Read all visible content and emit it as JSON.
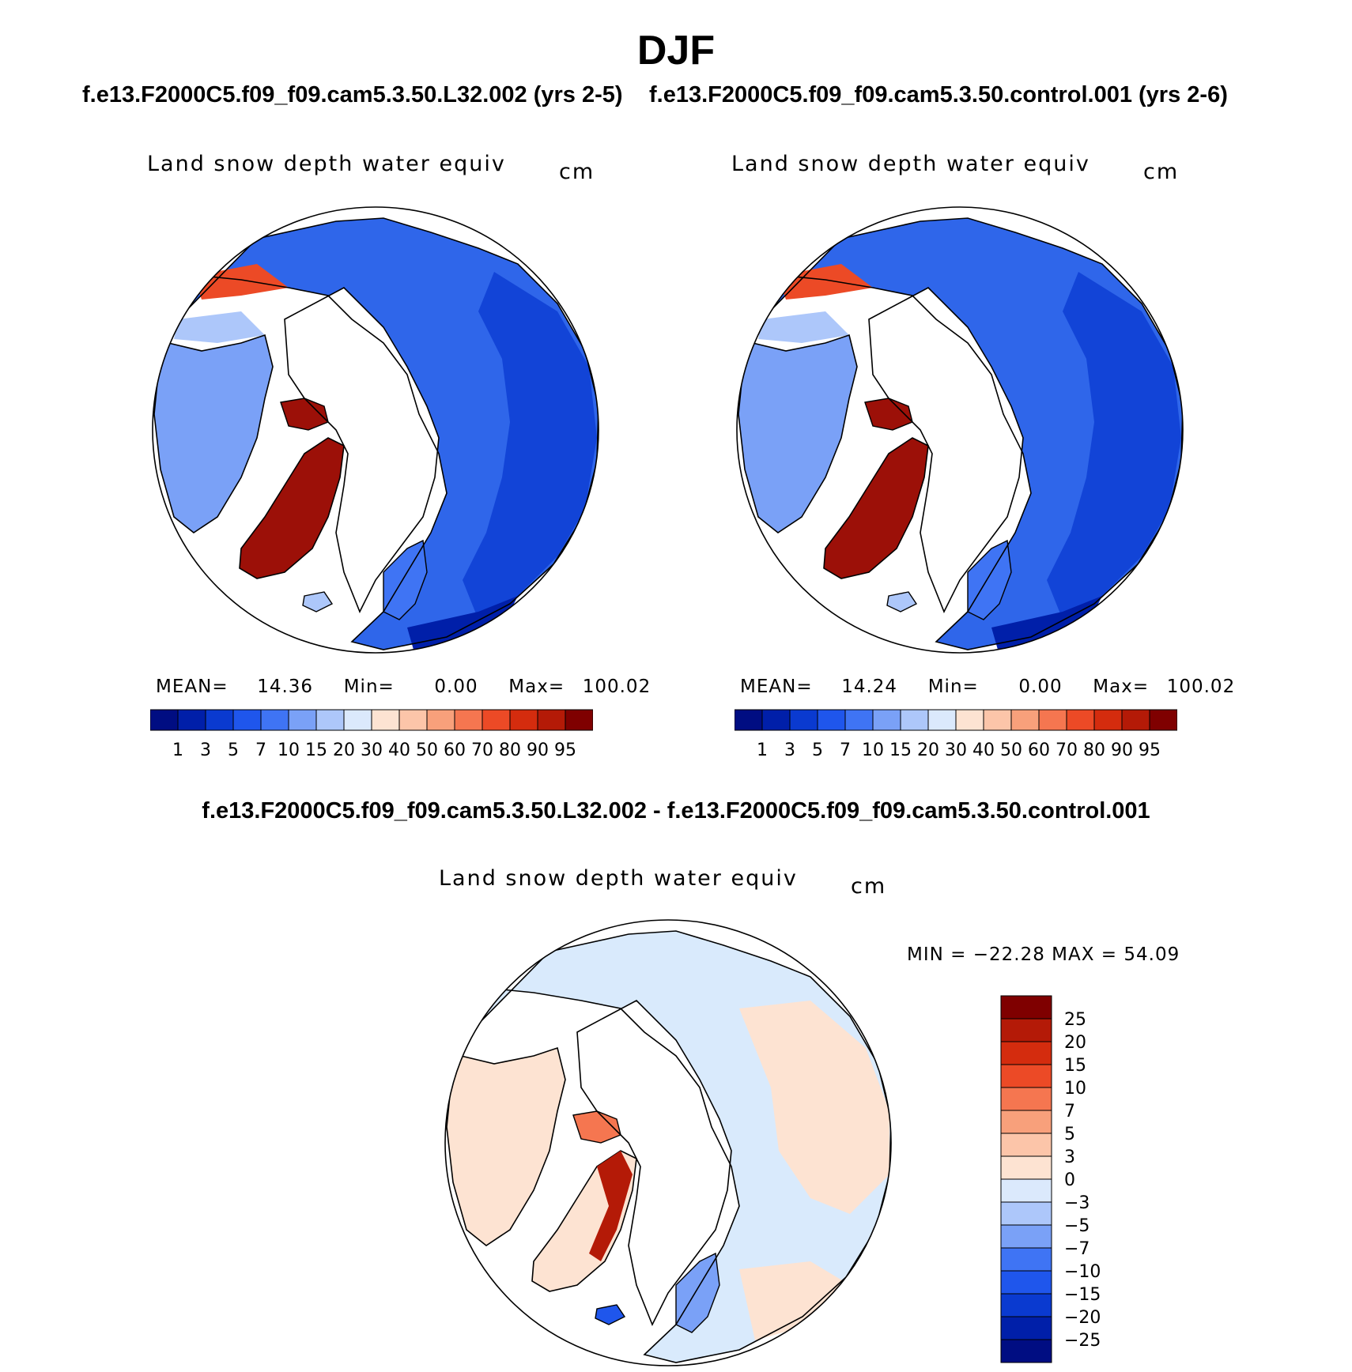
{
  "season": "DJF",
  "cases": {
    "test_title": "f.e13.F2000C5.f09_f09.cam5.3.50.L32.002 (yrs 2-5)",
    "control_title": "f.e13.F2000C5.f09_f09.cam5.3.50.control.001 (yrs 2-6)",
    "diff_title": "f.e13.F2000C5.f09_f09.cam5.3.50.L32.002 - f.e13.F2000C5.f09_f09.cam5.3.50.control.001"
  },
  "variable": {
    "long_name": "Land snow depth water equiv",
    "units": "cm"
  },
  "stats": {
    "test": {
      "mean_label": "MEAN=",
      "mean": "14.36",
      "min_label": "Min=",
      "min": "0.00",
      "max_label": "Max=",
      "max": "100.02"
    },
    "control": {
      "mean_label": "MEAN=",
      "mean": "14.24",
      "min_label": "Min=",
      "min": "0.00",
      "max_label": "Max=",
      "max": "100.02"
    },
    "diff": {
      "text": "MIN = −22.28 MAX =   54.09"
    }
  },
  "colors": {
    "land_base": "#2f66ea",
    "coast": "#000000",
    "greenland": "#9c1008",
    "diff_base": "#d9eafc"
  },
  "chart_data": [
    {
      "type": "heatmap",
      "panel": "test",
      "projection": "north polar stereographic",
      "title": "Land snow depth water equiv",
      "units": "cm",
      "mean": 14.36,
      "min": 0.0,
      "max": 100.02,
      "contour_levels": [
        1,
        3,
        5,
        7,
        10,
        15,
        20,
        30,
        40,
        50,
        60,
        70,
        80,
        90,
        95
      ],
      "colors": [
        "#000d82",
        "#001fa9",
        "#0a3ad0",
        "#1f56ec",
        "#3f74f4",
        "#7aa1f7",
        "#adc7fa",
        "#dbe9fc",
        "#fde3d2",
        "#fcc5a9",
        "#f8a07b",
        "#f57650",
        "#ec4a26",
        "#d42c0e",
        "#b41a07",
        "#7f0000"
      ]
    },
    {
      "type": "heatmap",
      "panel": "control",
      "projection": "north polar stereographic",
      "title": "Land snow depth water equiv",
      "units": "cm",
      "mean": 14.24,
      "min": 0.0,
      "max": 100.02,
      "contour_levels": [
        1,
        3,
        5,
        7,
        10,
        15,
        20,
        30,
        40,
        50,
        60,
        70,
        80,
        90,
        95
      ],
      "colors": [
        "#000d82",
        "#001fa9",
        "#0a3ad0",
        "#1f56ec",
        "#3f74f4",
        "#7aa1f7",
        "#adc7fa",
        "#dbe9fc",
        "#fde3d2",
        "#fcc5a9",
        "#f8a07b",
        "#f57650",
        "#ec4a26",
        "#d42c0e",
        "#b41a07",
        "#7f0000"
      ]
    },
    {
      "type": "heatmap",
      "panel": "difference",
      "projection": "north polar stereographic",
      "title": "Land snow depth water equiv",
      "units": "cm",
      "min": -22.28,
      "max": 54.09,
      "contour_levels": [
        -25,
        -20,
        -15,
        -10,
        -7,
        -5,
        -3,
        0,
        3,
        5,
        7,
        10,
        15,
        20,
        25
      ],
      "colors": [
        "#000d82",
        "#001fa9",
        "#0a3ad0",
        "#1f56ec",
        "#3f74f4",
        "#7aa1f7",
        "#adc7fa",
        "#dbe9fc",
        "#fde3d2",
        "#fcc5a9",
        "#f8a07b",
        "#f57650",
        "#ec4a26",
        "#d42c0e",
        "#b41a07",
        "#7f0000"
      ]
    }
  ]
}
